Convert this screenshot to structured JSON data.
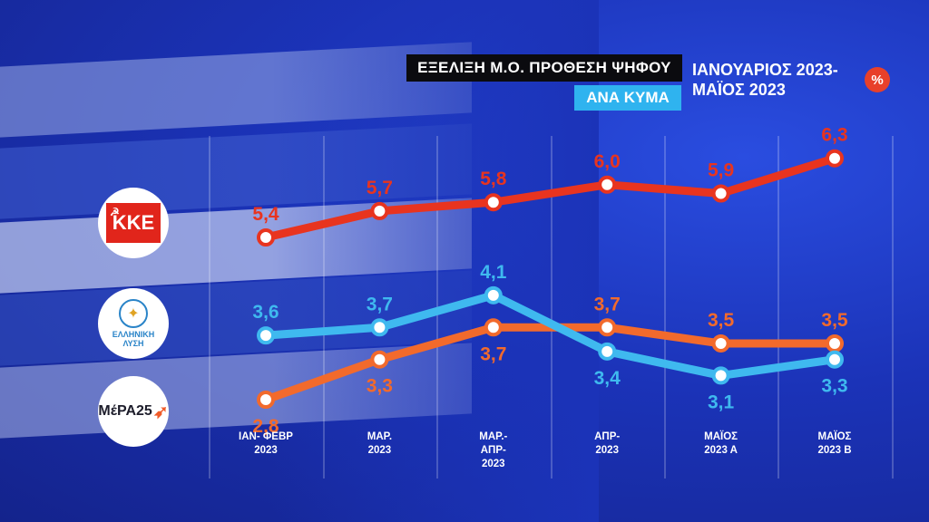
{
  "header": {
    "title": "ΕΞΕΛΙΞΗ Μ.Ο. ΠΡΟΘΕΣΗ ΨΗΦΟΥ",
    "subtitle": "ΑΝΑ ΚΥΜΑ",
    "period_line1": "ΙΑΝΟΥΑΡΙΟΣ 2023-",
    "period_line2": "ΜΑΪΟΣ 2023",
    "unit": "%"
  },
  "logos": {
    "kke_text": "ΚΚΕ",
    "el_line1": "ΕΛΛΗΝΙΚΗ",
    "el_line2": "ΛΥΣΗ",
    "mera_text": "ΜέΡΑ25"
  },
  "colors": {
    "kke": "#e8341f",
    "elliniki_lysi": "#3fb9ef",
    "mera25": "#f26a2c",
    "background": "#1b33b8"
  },
  "chart_data": {
    "type": "line",
    "categories": [
      "ΙΑΝ- ΦΕΒΡ\n2023",
      "ΜΑΡ.\n2023",
      "ΜΑΡ.-\nΑΠΡ-\n2023",
      "ΑΠΡ-\n2023",
      "ΜΑΪΟΣ\n2023 Α",
      "ΜΑΪΟΣ\n2023 Β"
    ],
    "series": [
      {
        "key": "kke",
        "values": [
          5.4,
          5.7,
          5.8,
          6.0,
          5.9,
          6.3
        ],
        "labels": [
          "5,4",
          "5,7",
          "5,8",
          "6,0",
          "5,9",
          "6,3"
        ]
      },
      {
        "key": "elliniki_lysi",
        "values": [
          3.6,
          3.7,
          4.1,
          3.4,
          3.1,
          3.3
        ],
        "labels": [
          "3,6",
          "3,7",
          "4,1",
          "3,4",
          "3,1",
          "3,3"
        ]
      },
      {
        "key": "mera25",
        "values": [
          2.8,
          3.3,
          3.7,
          3.7,
          3.5,
          3.5
        ],
        "labels": [
          "2,8",
          "3,3",
          "3,7",
          "3,7",
          "3,5",
          "3,5"
        ]
      }
    ],
    "grid": "vertical"
  }
}
